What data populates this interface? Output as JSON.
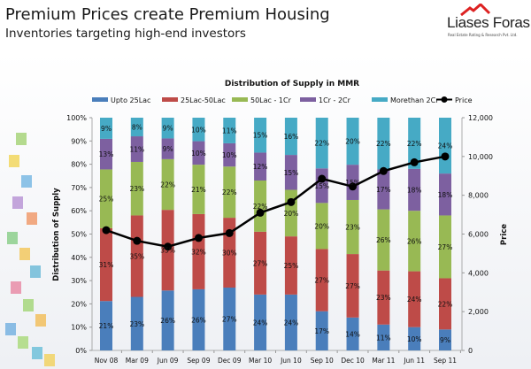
{
  "slide": {
    "title": "Premium Prices create Premium Housing",
    "subtitle": "Inventories targeting high-end investors",
    "logo_text": "Liases Foras",
    "logo_tagline": "Real Estate Rating & Research Pvt. Ltd."
  },
  "chart_data": {
    "type": "bar",
    "stacked": true,
    "percent_stacked": true,
    "title": "Distribution of Supply in MMR",
    "ylabel": "Distribution of Supply",
    "y2label": "Price",
    "ylim": [
      0,
      100
    ],
    "y2lim": [
      0,
      12000
    ],
    "yticks": [
      "0%",
      "10%",
      "20%",
      "30%",
      "40%",
      "50%",
      "60%",
      "70%",
      "80%",
      "90%",
      "100%"
    ],
    "y2ticks": [
      "0",
      "2,000",
      "4,000",
      "6,000",
      "8,000",
      "10,000",
      "12,000"
    ],
    "legend_position": "top",
    "categories": [
      "Nov 08",
      "Mar 09",
      "Jun 09",
      "Sep 09",
      "Dec 09",
      "Mar 10",
      "Jun 10",
      "Sep 10",
      "Dec 10",
      "Mar 11",
      "Jun 11",
      "Sep 11"
    ],
    "series": [
      {
        "name": "Upto 25Lac",
        "color": "#4a7ebb",
        "values": [
          21,
          23,
          26,
          26,
          27,
          24,
          24,
          17,
          14,
          11,
          10,
          9
        ]
      },
      {
        "name": "25Lac-50Lac",
        "color": "#be4b48",
        "values": [
          31,
          35,
          35,
          32,
          30,
          27,
          25,
          27,
          27,
          23,
          24,
          22
        ]
      },
      {
        "name": "50Lac - 1Cr",
        "color": "#98b954",
        "values": [
          25,
          23,
          22,
          21,
          22,
          22,
          20,
          20,
          23,
          26,
          26,
          27
        ]
      },
      {
        "name": "1Cr - 2Cr",
        "color": "#7d60a0",
        "values": [
          13,
          11,
          9,
          10,
          10,
          12,
          15,
          15,
          15,
          17,
          18,
          18
        ]
      },
      {
        "name": "Morethan 2Cr",
        "color": "#46aac5",
        "values": [
          9,
          8,
          9,
          10,
          11,
          15,
          16,
          22,
          20,
          22,
          22,
          24
        ]
      }
    ],
    "line_series": {
      "name": "Price",
      "color": "#000000",
      "axis": "right",
      "values": [
        6200,
        5650,
        5350,
        5800,
        6050,
        7100,
        7650,
        8850,
        8450,
        9250,
        9700,
        10000
      ]
    }
  }
}
